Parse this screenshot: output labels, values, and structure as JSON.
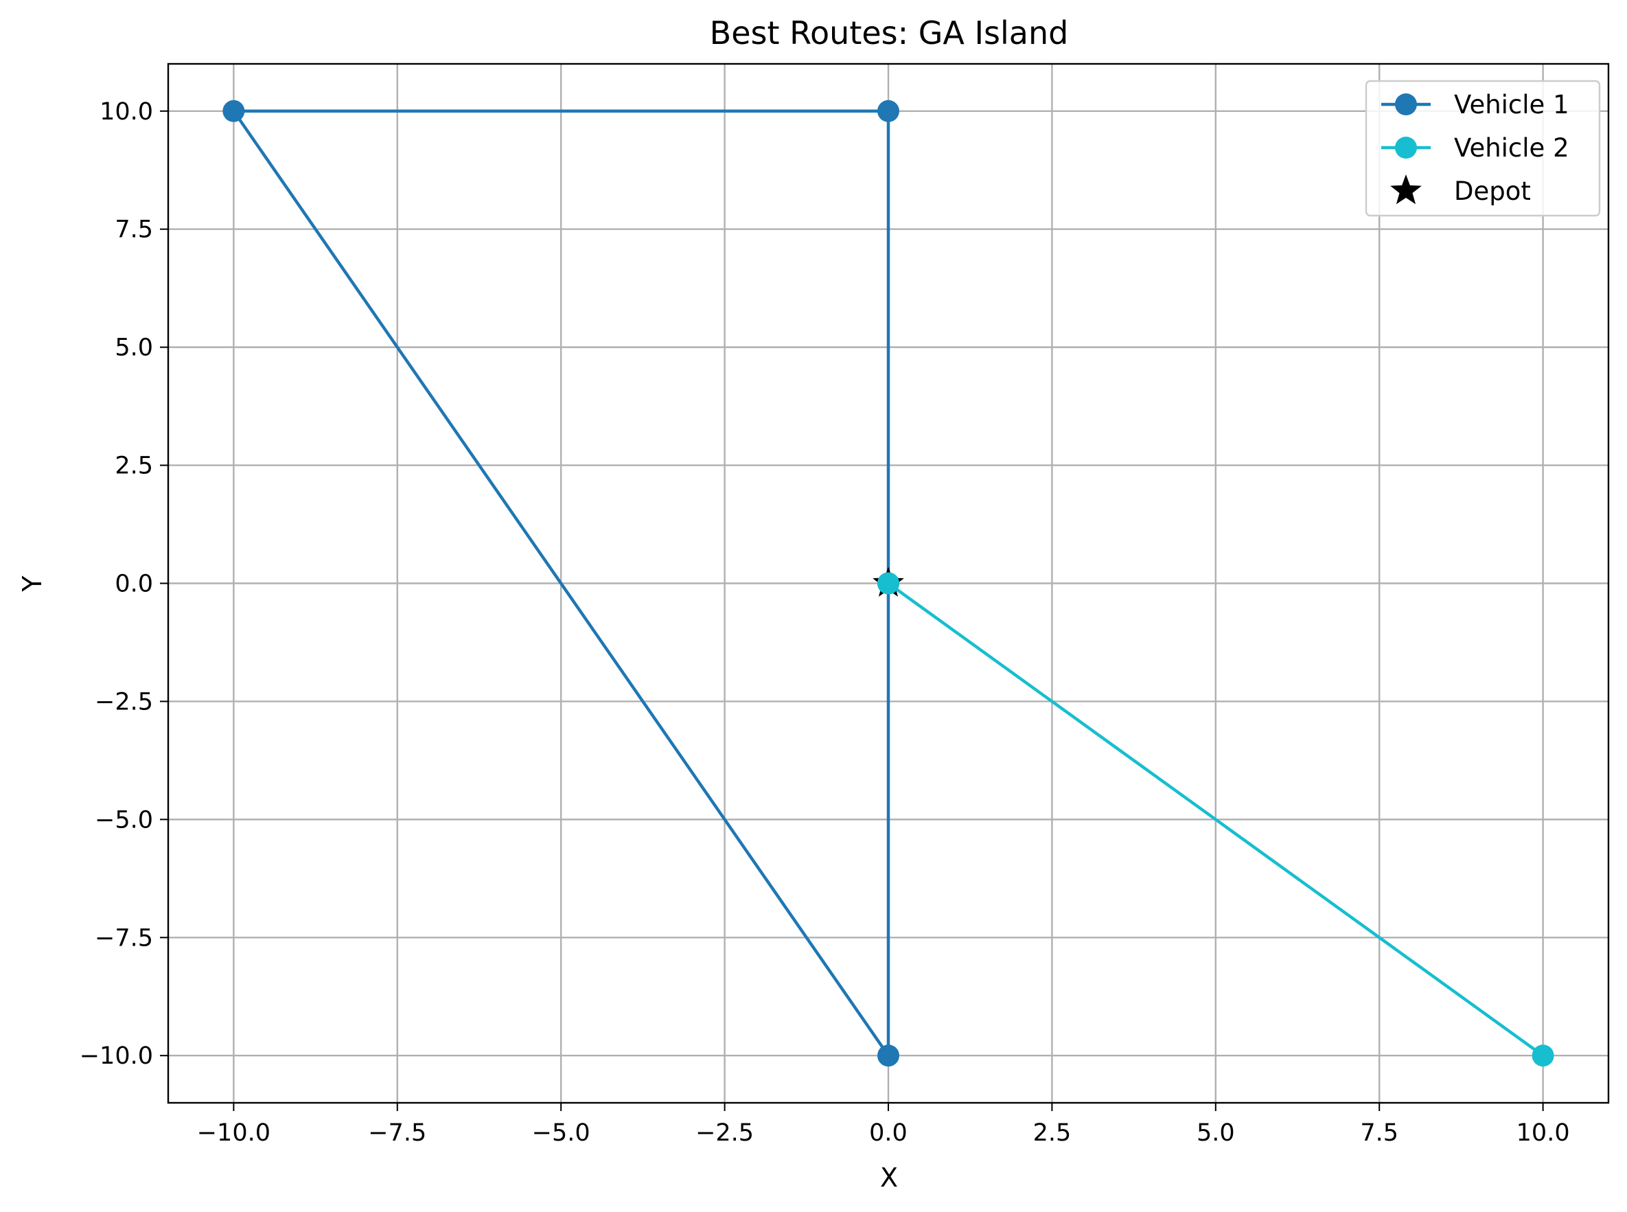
{
  "chart_data": {
    "type": "line",
    "title": "Best Routes: GA Island",
    "xlabel": "X",
    "ylabel": "Y",
    "xlim": [
      -11,
      11
    ],
    "ylim": [
      -11,
      11
    ],
    "xticks": [
      -10.0,
      -7.5,
      -5.0,
      -2.5,
      0.0,
      2.5,
      5.0,
      7.5,
      10.0
    ],
    "yticks": [
      -10.0,
      -7.5,
      -5.0,
      -2.5,
      0.0,
      2.5,
      5.0,
      7.5,
      10.0
    ],
    "xtick_labels": [
      "−10.0",
      "−7.5",
      "−5.0",
      "−2.5",
      "0.0",
      "2.5",
      "5.0",
      "7.5",
      "10.0"
    ],
    "ytick_labels": [
      "−10.0",
      "−7.5",
      "−5.0",
      "−2.5",
      "0.0",
      "2.5",
      "5.0",
      "7.5",
      "10.0"
    ],
    "grid": true,
    "legend_position": "top-right",
    "series": [
      {
        "name": "Vehicle 1",
        "color": "#1f77b4",
        "marker": "circle",
        "points": [
          [
            0,
            0
          ],
          [
            0,
            10
          ],
          [
            -10,
            10
          ],
          [
            0,
            -10
          ],
          [
            0,
            0
          ]
        ]
      },
      {
        "name": "Vehicle 2",
        "color": "#17becf",
        "marker": "circle",
        "points": [
          [
            0,
            0
          ],
          [
            10,
            -10
          ]
        ]
      }
    ],
    "depot": {
      "name": "Depot",
      "color": "#000000",
      "marker": "star",
      "point": [
        0,
        0
      ]
    }
  }
}
